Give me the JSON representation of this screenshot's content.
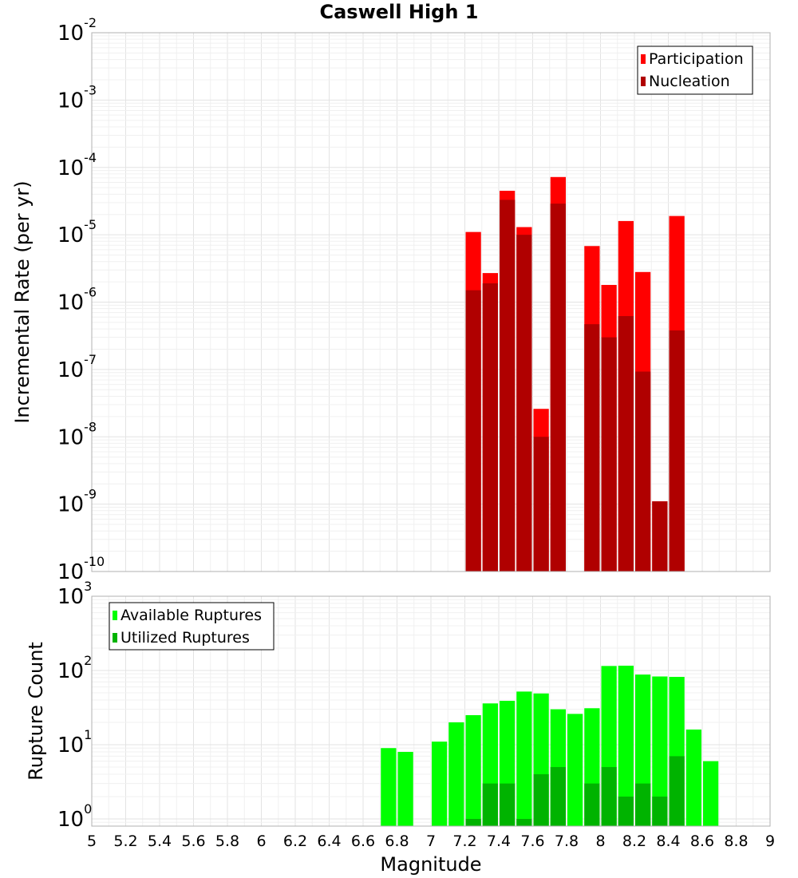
{
  "figure": {
    "title": "Caswell High 1"
  },
  "colors": {
    "participation": "#ff0000",
    "nucleation": "#b00000",
    "available": "#00ff00",
    "utilized": "#00b300"
  },
  "chart_data": [
    {
      "type": "bar",
      "scale": "log",
      "ylabel": "Incremental Rate (per yr)",
      "ylim": [
        1e-10,
        0.01
      ],
      "ytick_exponents": [
        "-10",
        "-9",
        "-8",
        "-7",
        "-6",
        "-5",
        "-4",
        "-3",
        "-2"
      ],
      "ytick_base": "10",
      "xlim": [
        5,
        9
      ],
      "bin_width": 0.1,
      "grid": true,
      "legend_position": "top-right",
      "x": [
        7.25,
        7.35,
        7.45,
        7.55,
        7.65,
        7.75,
        7.95,
        8.05,
        8.15,
        8.25,
        8.35,
        8.45
      ],
      "series": [
        {
          "name": "Participation",
          "color_key": "participation",
          "values": [
            1.1e-05,
            2.7e-06,
            4.5e-05,
            1.3e-05,
            2.6e-08,
            7.2e-05,
            6.8e-06,
            1.8e-06,
            1.6e-05,
            2.8e-06,
            1.1e-09,
            1.9e-05
          ]
        },
        {
          "name": "Nucleation",
          "color_key": "nucleation",
          "values": [
            1.5e-06,
            1.9e-06,
            3.3e-05,
            1e-05,
            1e-08,
            2.9e-05,
            4.7e-07,
            3e-07,
            6.2e-07,
            9.3e-08,
            1.1e-09,
            3.8e-07
          ]
        }
      ]
    },
    {
      "type": "bar",
      "scale": "log",
      "ylabel": "Rupture Count",
      "xlabel": "Magnitude",
      "ylim": [
        0.8,
        1000
      ],
      "ytick_exponents": [
        "0",
        "1",
        "2",
        "3"
      ],
      "ytick_base": "10",
      "xlim": [
        5,
        9
      ],
      "xticks": [
        "5",
        "5.2",
        "5.4",
        "5.6",
        "5.8",
        "6",
        "6.2",
        "6.4",
        "6.6",
        "6.8",
        "7",
        "7.2",
        "7.4",
        "7.6",
        "7.8",
        "8",
        "8.2",
        "8.4",
        "8.6",
        "8.8",
        "9"
      ],
      "bin_width": 0.1,
      "grid": true,
      "legend_position": "top-left",
      "x": [
        6.75,
        6.85,
        7.05,
        7.15,
        7.25,
        7.35,
        7.45,
        7.55,
        7.65,
        7.75,
        7.85,
        7.95,
        8.05,
        8.15,
        8.25,
        8.35,
        8.45,
        8.55,
        8.65
      ],
      "series": [
        {
          "name": "Available Ruptures",
          "color_key": "available",
          "values": [
            9,
            8,
            11,
            20,
            25,
            36,
            39,
            52,
            49,
            30,
            26,
            31,
            115,
            116,
            88,
            83,
            82,
            16,
            6
          ]
        },
        {
          "name": "Utilized Ruptures",
          "color_key": "utilized",
          "values": [
            0,
            0,
            0,
            0,
            1,
            3,
            3,
            1,
            4,
            5,
            0,
            3,
            5,
            2,
            3,
            2,
            7,
            0,
            0
          ]
        }
      ]
    }
  ]
}
